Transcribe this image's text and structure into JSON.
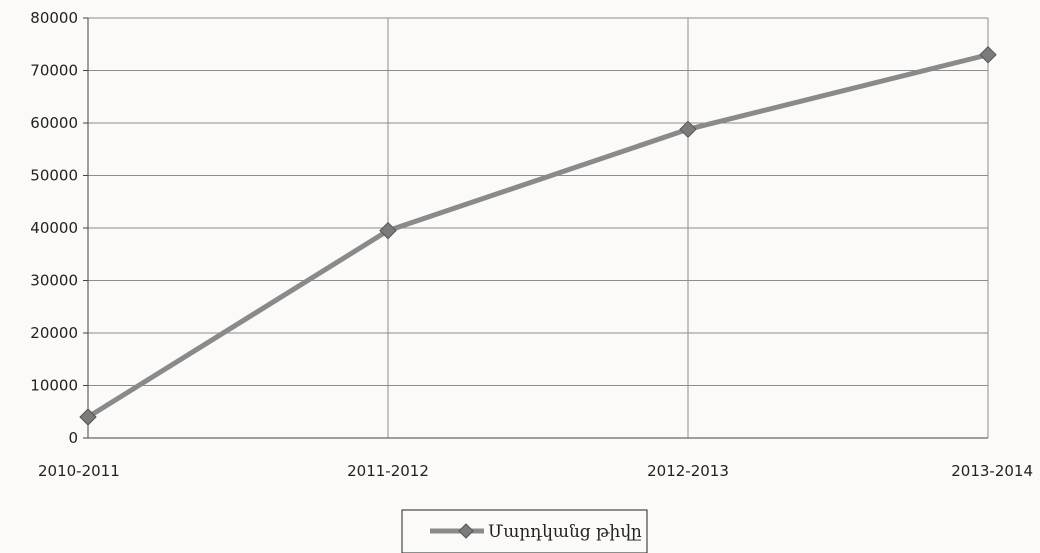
{
  "chart_data": {
    "type": "line",
    "categories": [
      "2010-2011",
      "2011-2012",
      "2012-2013",
      "2013-2014"
    ],
    "series": [
      {
        "name": "Մարդկանց թիվը",
        "values": [
          4000,
          39500,
          58800,
          73000
        ]
      }
    ],
    "ylim": [
      0,
      80000
    ],
    "yticks": [
      "0",
      "10000",
      "20000",
      "30000",
      "40000",
      "50000",
      "60000",
      "70000",
      "80000"
    ],
    "grid": true,
    "legend": "bottom-center",
    "colors": {
      "line": "#8a8a8a",
      "marker": "#7b7b7b",
      "grid": "#8c8c8c"
    }
  }
}
